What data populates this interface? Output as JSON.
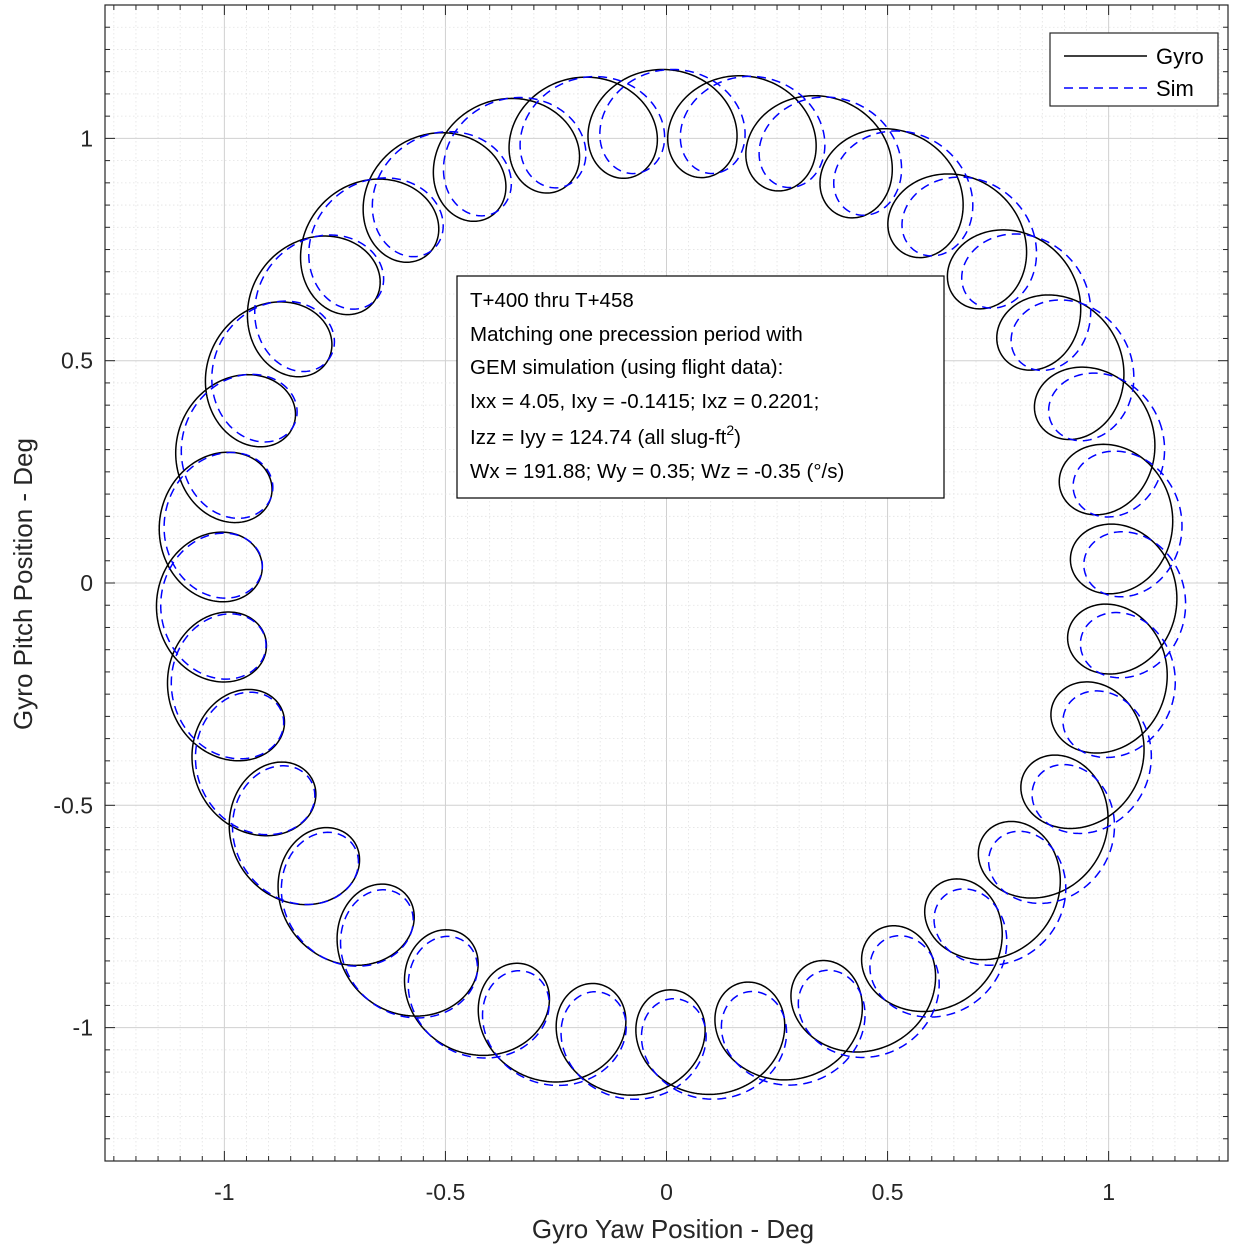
{
  "chart_data": {
    "type": "line",
    "xlabel": "Gyro Yaw Position - Deg",
    "ylabel": "Gyro Pitch Position - Deg",
    "xlim": [
      -1.27,
      1.27
    ],
    "ylim": [
      -1.3,
      1.3
    ],
    "xticks": [
      -1,
      -0.5,
      0,
      0.5,
      1
    ],
    "yticks": [
      -1,
      -0.5,
      0,
      0.5,
      1
    ],
    "xtick_labels": [
      "-1",
      "-0.5",
      "0",
      "0.5",
      "1"
    ],
    "ytick_labels": [
      "-1",
      "-0.5",
      "0",
      "0.5",
      "1"
    ],
    "grid": true,
    "minor_grid": true,
    "legend_position": "top-right",
    "series": [
      {
        "name": "Gyro",
        "color": "#000000",
        "style": "solid",
        "precession_radius": 1.035,
        "precession_center": [
          0,
          0
        ],
        "precession_start_angle_deg": 8,
        "precession_turns": 1.0,
        "nutation_radius": 0.12,
        "nutation_cycles": 36,
        "nutation_phase_deg": 0
      },
      {
        "name": "Sim",
        "color": "#0000ff",
        "style": "dashed",
        "precession_radius": 1.045,
        "precession_center": [
          0.015,
          -0.005
        ],
        "precession_start_angle_deg": 18,
        "precession_turns": 1.0,
        "nutation_radius": 0.115,
        "nutation_cycles": 36,
        "nutation_phase_deg": 15
      }
    ],
    "annotation": {
      "lines": [
        "T+400 thru T+458",
        "Matching one precession period with",
        "GEM simulation (using flight data):",
        "Ixx = 4.05, Ixy = -0.1415; Ixz = 0.2201;",
        "Izz = Iyy = 124.74 (all slug-ft",
        "Wx = 191.88; Wy = 0.35; Wz = -0.35 (°/s)"
      ],
      "superscript": "2",
      "suffix": ")"
    }
  }
}
